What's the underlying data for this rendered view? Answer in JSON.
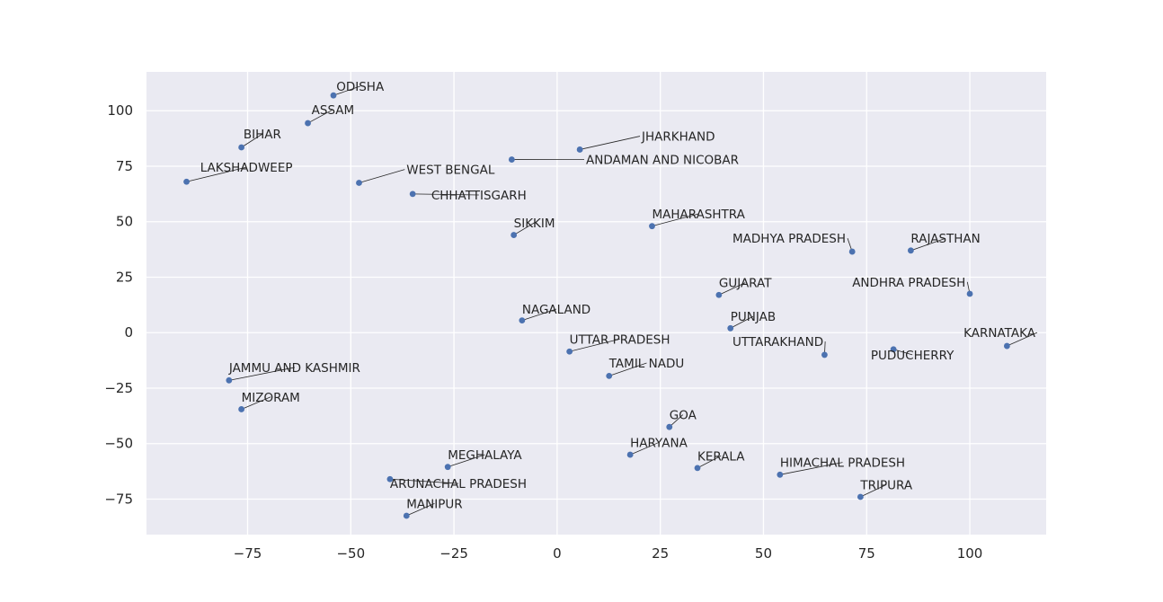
{
  "chart_data": {
    "type": "scatter",
    "title": "",
    "xlabel": "",
    "ylabel": "",
    "xlim": [
      -99.5,
      118.5
    ],
    "ylim": [
      -91,
      117.5
    ],
    "xticks": [
      -75,
      -50,
      -25,
      0,
      25,
      50,
      75,
      100
    ],
    "yticks": [
      -75,
      -50,
      -25,
      0,
      25,
      50,
      75,
      100
    ],
    "grid": true,
    "point_color": "#4c72b0",
    "axes_background": "#eaeaf2",
    "points": [
      {
        "label": "ODISHA",
        "x": -54.2,
        "y": 106.9,
        "lx": -53.5,
        "ly": 109
      },
      {
        "label": "ASSAM",
        "x": -60.4,
        "y": 94.4,
        "lx": -59.5,
        "ly": 98.5
      },
      {
        "label": "BIHAR",
        "x": -76.5,
        "y": 83.5,
        "lx": -76.0,
        "ly": 87.5
      },
      {
        "label": "LAKSHADWEEP",
        "x": -89.8,
        "y": 68.0,
        "lx": -86.5,
        "ly": 72.5
      },
      {
        "label": "JHARKHAND",
        "x": 5.5,
        "y": 82.5,
        "lx": 20.5,
        "ly": 86.5
      },
      {
        "label": "ANDAMAN AND NICOBAR",
        "x": -11.0,
        "y": 78.0,
        "lx": 7.0,
        "ly": 76.0
      },
      {
        "label": "WEST BENGAL",
        "x": -48.0,
        "y": 67.5,
        "lx": -36.5,
        "ly": 71.5
      },
      {
        "label": "CHHATTISGARH",
        "x": -35.0,
        "y": 62.5,
        "lx": -30.5,
        "ly": 60.0
      },
      {
        "label": "SIKKIM",
        "x": -10.5,
        "y": 44.0,
        "lx": -10.5,
        "ly": 47.5
      },
      {
        "label": "MAHARASHTRA",
        "x": 23.0,
        "y": 48.0,
        "lx": 23.0,
        "ly": 51.5
      },
      {
        "label": "MADHYA PRADESH",
        "x": 71.5,
        "y": 36.5,
        "lx": 42.5,
        "ly": 40.5
      },
      {
        "label": "RAJASTHAN",
        "x": 85.7,
        "y": 37.0,
        "lx": 85.7,
        "ly": 40.5
      },
      {
        "label": "GUJARAT",
        "x": 39.2,
        "y": 17.0,
        "lx": 39.2,
        "ly": 20.5
      },
      {
        "label": "ANDHRA PRADESH",
        "x": 100.0,
        "y": 17.5,
        "lx": 71.5,
        "ly": 20.8
      },
      {
        "label": "NAGALAND",
        "x": -8.5,
        "y": 5.5,
        "lx": -8.5,
        "ly": 8.6
      },
      {
        "label": "PUNJAB",
        "x": 42.0,
        "y": 2.0,
        "lx": 42.0,
        "ly": 5.3
      },
      {
        "label": "KARNATAKA",
        "x": 109.0,
        "y": -6.0,
        "lx": 98.5,
        "ly": -2.0
      },
      {
        "label": "UTTAR PRADESH",
        "x": 3.0,
        "y": -8.5,
        "lx": 3.0,
        "ly": -4.9
      },
      {
        "label": "UTTARAKHAND",
        "x": 64.8,
        "y": -10.0,
        "lx": 42.5,
        "ly": -6.0
      },
      {
        "label": "PUDUCHERRY",
        "x": 81.5,
        "y": -7.5,
        "lx": 76.0,
        "ly": -12.0
      },
      {
        "label": "TAMIL NADU",
        "x": 12.6,
        "y": -19.5,
        "lx": 12.6,
        "ly": -15.7
      },
      {
        "label": "JAMMU AND KASHMIR",
        "x": -79.5,
        "y": -21.5,
        "lx": -79.5,
        "ly": -17.7
      },
      {
        "label": "MIZORAM",
        "x": -76.5,
        "y": -34.5,
        "lx": -76.5,
        "ly": -31.0
      },
      {
        "label": "GOA",
        "x": 27.2,
        "y": -42.5,
        "lx": 27.2,
        "ly": -39.0
      },
      {
        "label": "HARYANA",
        "x": 17.7,
        "y": -55.0,
        "lx": 17.7,
        "ly": -51.5
      },
      {
        "label": "MEGHALAYA",
        "x": -26.5,
        "y": -60.5,
        "lx": -26.5,
        "ly": -57.0
      },
      {
        "label": "KERALA",
        "x": 34.0,
        "y": -61.0,
        "lx": 34.0,
        "ly": -57.5
      },
      {
        "label": "HIMACHAL PRADESH",
        "x": 54.0,
        "y": -64.0,
        "lx": 54.0,
        "ly": -60.5
      },
      {
        "label": "ARUNACHAL PRADESH",
        "x": -40.5,
        "y": -66.0,
        "lx": -40.5,
        "ly": -70.0
      },
      {
        "label": "TRIPURA",
        "x": 73.5,
        "y": -74.0,
        "lx": 73.5,
        "ly": -70.5
      },
      {
        "label": "MANIPUR",
        "x": -36.5,
        "y": -82.5,
        "lx": -36.5,
        "ly": -79.0
      }
    ]
  }
}
